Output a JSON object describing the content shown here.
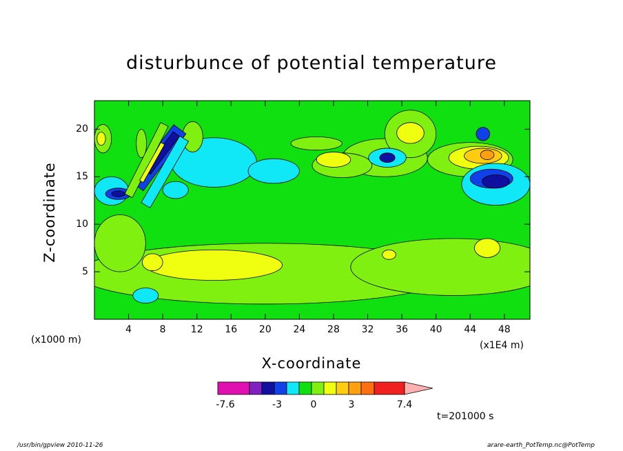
{
  "chart_data": {
    "type": "heatmap",
    "title": "disturbunce of potential temperature",
    "xlabel": "X-coordinate",
    "ylabel": "Z-coordinate",
    "x_unit_left": "(x1000 m)",
    "x_unit_right": "(x1E4 m)",
    "x_ticks": [
      "4",
      "8",
      "12",
      "16",
      "20",
      "24",
      "28",
      "32",
      "36",
      "40",
      "44",
      "48"
    ],
    "x_tick_values": [
      4,
      8,
      12,
      16,
      20,
      24,
      28,
      32,
      36,
      40,
      44,
      48
    ],
    "y_ticks": [
      "5",
      "10",
      "15",
      "20"
    ],
    "y_tick_values": [
      5,
      10,
      15,
      20
    ],
    "xlim": [
      0,
      51
    ],
    "ylim": [
      0,
      23
    ],
    "colorbar": {
      "levels": [
        -7.6,
        -6.6,
        -5.6,
        -4.5,
        -3.5,
        -2.5,
        -1.5,
        -0.5,
        0.5,
        1.5,
        2.5,
        3.5,
        4.5,
        7.4
      ],
      "colors": [
        "#e010b0",
        "#8020c0",
        "#1010a0",
        "#1040e8",
        "#10e8f8",
        "#10e010",
        "#80f010",
        "#f0ff10",
        "#ffcc10",
        "#ffa010",
        "#ff7010",
        "#f02020",
        "#ff7878",
        "#ffb0b0"
      ],
      "labels": [
        "-7.6",
        "-3",
        "0",
        "3",
        "7.4"
      ],
      "label_values": [
        -7.6,
        -3,
        0,
        3,
        7.4
      ]
    },
    "regions": [
      {
        "level": 1,
        "cx": 20,
        "cy": 4.8,
        "rx": 22,
        "ry": 3.2
      },
      {
        "level": 1,
        "cx": 42,
        "cy": 5.5,
        "rx": 12,
        "ry": 3
      },
      {
        "level": 2,
        "cx": 14,
        "cy": 5.7,
        "rx": 8,
        "ry": 1.6
      },
      {
        "level": 2,
        "cx": 6.8,
        "cy": 6,
        "rx": 1.2,
        "ry": 0.9
      },
      {
        "level": 2,
        "cx": 46,
        "cy": 7.5,
        "rx": 1.5,
        "ry": 1
      },
      {
        "level": 2,
        "cx": 34.5,
        "cy": 6.8,
        "rx": 0.8,
        "ry": 0.5
      },
      {
        "level": 1,
        "cx": 34,
        "cy": 17,
        "rx": 5,
        "ry": 2
      },
      {
        "level": 1,
        "cx": 29,
        "cy": 16.2,
        "rx": 3.5,
        "ry": 1.3
      },
      {
        "level": 2,
        "cx": 28,
        "cy": 16.8,
        "rx": 2,
        "ry": 0.8
      },
      {
        "level": 1,
        "cx": 37,
        "cy": 19.5,
        "rx": 3,
        "ry": 2.5
      },
      {
        "level": 2,
        "cx": 37,
        "cy": 19.6,
        "rx": 1.6,
        "ry": 1.1
      },
      {
        "level": 1,
        "cx": 44,
        "cy": 16.8,
        "rx": 5,
        "ry": 1.8
      },
      {
        "level": 2,
        "cx": 45,
        "cy": 17,
        "rx": 3.5,
        "ry": 1.2
      },
      {
        "level": 3,
        "cx": 45.5,
        "cy": 17.2,
        "rx": 2.2,
        "ry": 0.8
      },
      {
        "level": 4,
        "cx": 46,
        "cy": 17.3,
        "rx": 0.8,
        "ry": 0.5
      },
      {
        "level": 1,
        "cx": 26,
        "cy": 18.5,
        "rx": 3,
        "ry": 0.7
      },
      {
        "level": 1,
        "cx": 1,
        "cy": 19,
        "rx": 1,
        "ry": 1.5
      },
      {
        "level": 2,
        "cx": 0.8,
        "cy": 19,
        "rx": 0.5,
        "ry": 0.7
      },
      {
        "level": -1,
        "cx": 14,
        "cy": 16.5,
        "rx": 5,
        "ry": 2.6
      },
      {
        "level": -1,
        "cx": 21,
        "cy": 15.6,
        "rx": 3,
        "ry": 1.3
      },
      {
        "level": -1,
        "cx": 47,
        "cy": 14.2,
        "rx": 4,
        "ry": 2.2
      },
      {
        "level": -1,
        "cx": 34.3,
        "cy": 17,
        "rx": 2.2,
        "ry": 1
      },
      {
        "level": -3,
        "cx": 34.3,
        "cy": 17,
        "rx": 0.9,
        "ry": 0.5
      },
      {
        "level": -1,
        "cx": 2,
        "cy": 13.5,
        "rx": 2,
        "ry": 1.5
      },
      {
        "level": -1,
        "cx": 9.5,
        "cy": 13.6,
        "rx": 1.5,
        "ry": 0.9
      },
      {
        "level": -2,
        "cx": 46.5,
        "cy": 14.8,
        "rx": 2.5,
        "ry": 1
      },
      {
        "level": -3,
        "cx": 47,
        "cy": 14.5,
        "rx": 1.6,
        "ry": 0.7
      },
      {
        "level": -2,
        "cx": 45.5,
        "cy": 19.5,
        "rx": 0.8,
        "ry": 0.7
      },
      {
        "level": -2,
        "cx": 2.8,
        "cy": 13.2,
        "rx": 1.5,
        "ry": 0.6
      },
      {
        "level": -3,
        "cx": 2.8,
        "cy": 13.2,
        "rx": 0.8,
        "ry": 0.3
      },
      {
        "level": 1,
        "cx": 5.5,
        "cy": 18.5,
        "rx": 0.6,
        "ry": 1.5
      },
      {
        "level": 1,
        "cx": 11.5,
        "cy": 19.2,
        "rx": 1.2,
        "ry": 1.6
      },
      {
        "level": 1,
        "cx": 3,
        "cy": 8,
        "rx": 3,
        "ry": 3
      },
      {
        "level": -1,
        "cx": 6,
        "cy": 2.5,
        "rx": 1.5,
        "ry": 0.8
      }
    ],
    "streaks": [
      {
        "level": -2,
        "x1": 5,
        "y1": 14,
        "x2": 10,
        "y2": 20,
        "w": 0.9
      },
      {
        "level": -3,
        "x1": 6.2,
        "y1": 15.5,
        "x2": 9.6,
        "y2": 19.5,
        "w": 0.45
      },
      {
        "level": -1,
        "x1": 6,
        "y1": 12,
        "x2": 10.5,
        "y2": 19,
        "w": 0.6
      },
      {
        "level": 1,
        "x1": 4,
        "y1": 13,
        "x2": 8.2,
        "y2": 20.5,
        "w": 0.5
      },
      {
        "level": 2,
        "x1": 5.5,
        "y1": 14.5,
        "x2": 8,
        "y2": 18.5,
        "w": 0.25
      }
    ],
    "timestamp": "t=201000 s"
  },
  "footer": {
    "left": "/usr/bin/gpview 2010-11-26",
    "right": "arare-earth_PotTemp.nc@PotTemp"
  }
}
